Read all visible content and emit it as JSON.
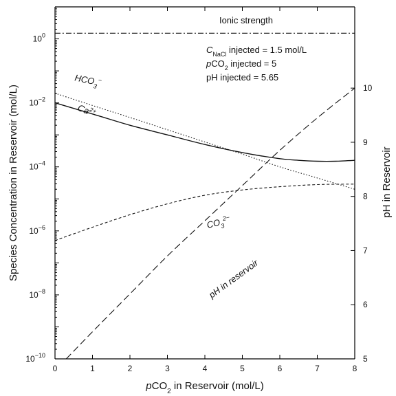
{
  "chart_data": {
    "type": "line",
    "x_axis": {
      "label_prefix": "p",
      "label_main": "CO",
      "label_sub": "2",
      "label_suffix": " in Reservoir (mol/L)",
      "range": [
        0,
        8
      ],
      "ticks": [
        0,
        1,
        2,
        3,
        4,
        5,
        6,
        7,
        8
      ],
      "tick_labels": [
        "0",
        "1",
        "2",
        "3",
        "4",
        "5",
        "6",
        "7",
        "8"
      ]
    },
    "y_axis_left": {
      "label": "Species Concentration in Reservoir (mol/L)",
      "scale": "log",
      "range": [
        1e-10,
        10
      ],
      "ticks": [
        1e-10,
        1e-08,
        1e-06,
        0.0001,
        0.01,
        1
      ],
      "tick_labels": [
        "10",
        "10",
        "10",
        "10",
        "10",
        "10"
      ],
      "tick_exponents": [
        "−10",
        "−8",
        "−6",
        "−4",
        "−2",
        "0"
      ]
    },
    "y_axis_right": {
      "label": "pH in Reservoir",
      "scale": "linear",
      "range": [
        5,
        11.5
      ],
      "ticks": [
        5,
        6,
        7,
        8,
        9,
        10
      ],
      "tick_labels": [
        "5",
        "6",
        "7",
        "8",
        "9",
        "10"
      ]
    },
    "annotations": {
      "ionic_strength": "Ionic strength",
      "c_nacl_prefix": "C",
      "c_nacl_sub": "NaCl",
      "c_nacl_suffix": " injected = 1.5 mol/L",
      "pco2_prefix": "p",
      "pco2_main": "CO",
      "pco2_sub": "2",
      "pco2_suffix": " injected = 5",
      "ph_injected": "pH injected = 5.65"
    },
    "series": [
      {
        "name": "Ionic strength",
        "axis": "left",
        "style": "dashdot",
        "x": [
          0,
          8
        ],
        "y": [
          1.5,
          1.5
        ]
      },
      {
        "name": "HCO3-",
        "label_main": "HCO",
        "label_sub": "3",
        "label_sup": "−",
        "axis": "left",
        "style": "dotted",
        "x": [
          0,
          1,
          2,
          3,
          4,
          5,
          6,
          7,
          8
        ],
        "y": [
          0.02,
          0.0083,
          0.0035,
          0.00145,
          0.0006,
          0.00025,
          0.0001,
          4.5e-05,
          2e-05
        ]
      },
      {
        "name": "Ca2+",
        "label_main": "Ca",
        "label_sup": "2+",
        "axis": "left",
        "style": "solid",
        "x": [
          0,
          1,
          2,
          3,
          4,
          5,
          6,
          6.5,
          7,
          7.5,
          8
        ],
        "y": [
          0.01,
          0.0045,
          0.002,
          0.001,
          0.0005,
          0.00028,
          0.00018,
          0.00016,
          0.00015,
          0.00015,
          0.00016
        ]
      },
      {
        "name": "CO3 2-",
        "label_main": "CO",
        "label_sub": "3",
        "label_sup": "2−",
        "axis": "left",
        "style": "dashed",
        "x": [
          0,
          1,
          2,
          3,
          4,
          5,
          6,
          7,
          8
        ],
        "y": [
          5e-07,
          1.3e-06,
          3.2e-06,
          7e-06,
          1.3e-05,
          1.9e-05,
          2.4e-05,
          2.8e-05,
          2.9e-05
        ]
      },
      {
        "name": "pH in reservoir",
        "label": "pH in reservoir",
        "axis": "right",
        "style": "longdash",
        "x": [
          0.3,
          1,
          2,
          3,
          4,
          5,
          6,
          7,
          8
        ],
        "y": [
          5.0,
          5.5,
          6.2,
          6.9,
          7.55,
          8.2,
          8.85,
          9.45,
          10.0
        ]
      }
    ]
  }
}
